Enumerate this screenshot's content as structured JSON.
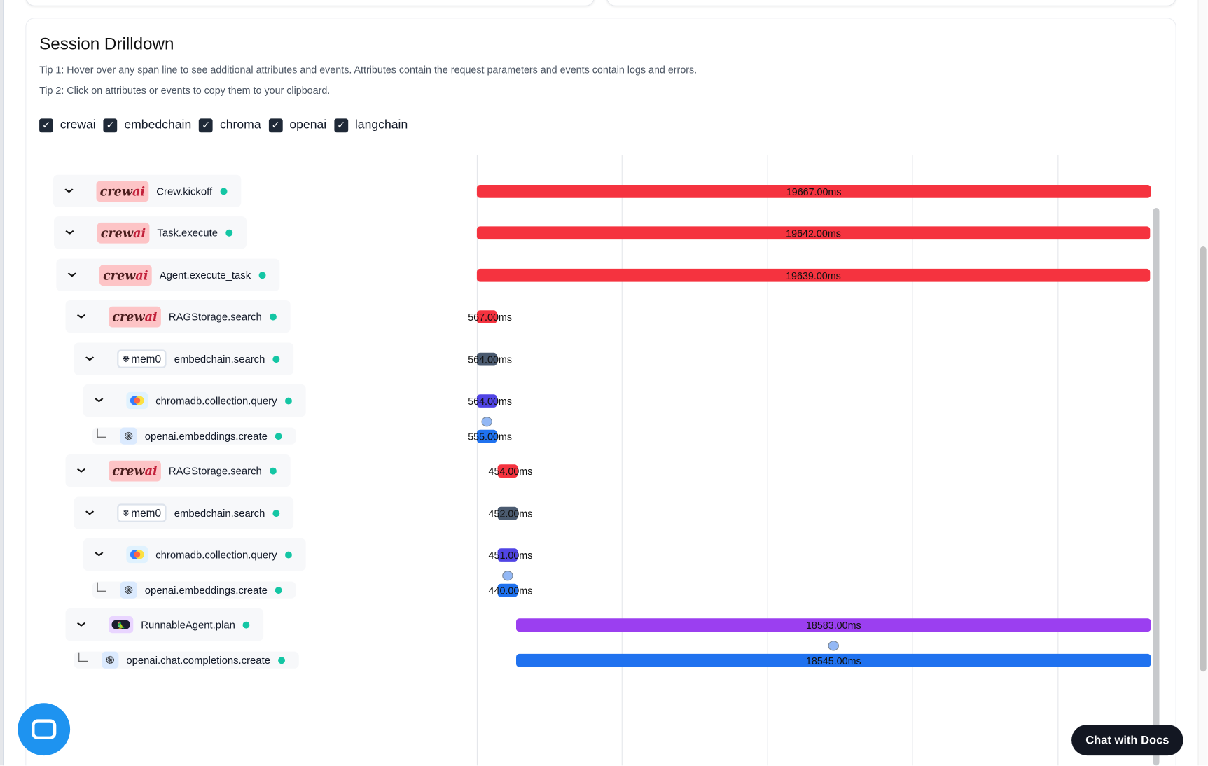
{
  "title": "Session Drilldown",
  "tips": [
    "Tip 1: Hover over any span line to see additional attributes and events. Attributes contain the request parameters and events contain logs and errors.",
    "Tip 2: Click on attributes or events to copy them to your clipboard."
  ],
  "filters": [
    {
      "label": "crewai",
      "checked": true
    },
    {
      "label": "embedchain",
      "checked": true
    },
    {
      "label": "chroma",
      "checked": true
    },
    {
      "label": "openai",
      "checked": true
    },
    {
      "label": "langchain",
      "checked": true
    }
  ],
  "colors": {
    "crewai": "#f5333f",
    "embedchain": "#4b5b70",
    "chroma": "#5145e5",
    "openai": "#2072ef",
    "langchain": "#9b3ff0",
    "status_ok": "#14c6a4"
  },
  "spans": [
    {
      "name": "Crew.kickoff",
      "vendor": "crewai",
      "depth": 0,
      "leaf": false,
      "start_ms": 0,
      "duration_label": "19667.00ms",
      "duration_ms": 19667,
      "event": false
    },
    {
      "name": "Task.execute",
      "vendor": "crewai",
      "depth": 0,
      "leaf": false,
      "start_ms": 0,
      "duration_label": "19642.00ms",
      "duration_ms": 19642,
      "event": false
    },
    {
      "name": "Agent.execute_task",
      "vendor": "crewai",
      "depth": 1,
      "leaf": false,
      "start_ms": 0,
      "duration_label": "19639.00ms",
      "duration_ms": 19639,
      "event": false
    },
    {
      "name": "RAGStorage.search",
      "vendor": "crewai",
      "depth": 2,
      "leaf": false,
      "start_ms": 0,
      "duration_label": "567.00ms",
      "duration_ms": 567,
      "event": false
    },
    {
      "name": "embedchain.search",
      "vendor": "embedchain",
      "depth": 3,
      "leaf": false,
      "start_ms": 0,
      "duration_label": "564.00ms",
      "duration_ms": 564,
      "event": false
    },
    {
      "name": "chromadb.collection.query",
      "vendor": "chroma",
      "depth": 4,
      "leaf": false,
      "start_ms": 0,
      "duration_label": "564.00ms",
      "duration_ms": 564,
      "event": false
    },
    {
      "name": "openai.embeddings.create",
      "vendor": "openai",
      "depth": 5,
      "leaf": true,
      "start_ms": 0,
      "duration_label": "555.00ms",
      "duration_ms": 555,
      "event": true
    },
    {
      "name": "RAGStorage.search",
      "vendor": "crewai",
      "depth": 2,
      "leaf": false,
      "start_ms": 600,
      "duration_label": "454.00ms",
      "duration_ms": 454,
      "event": false
    },
    {
      "name": "embedchain.search",
      "vendor": "embedchain",
      "depth": 3,
      "leaf": false,
      "start_ms": 600,
      "duration_label": "452.00ms",
      "duration_ms": 452,
      "event": false
    },
    {
      "name": "chromadb.collection.query",
      "vendor": "chroma",
      "depth": 4,
      "leaf": false,
      "start_ms": 600,
      "duration_label": "451.00ms",
      "duration_ms": 451,
      "event": false
    },
    {
      "name": "openai.embeddings.create",
      "vendor": "openai",
      "depth": 5,
      "leaf": true,
      "start_ms": 600,
      "duration_label": "440.00ms",
      "duration_ms": 440,
      "event": true
    },
    {
      "name": "RunnableAgent.plan",
      "vendor": "langchain",
      "depth": 2,
      "leaf": false,
      "start_ms": 1150,
      "duration_label": "18583.00ms",
      "duration_ms": 18583,
      "event": false
    },
    {
      "name": "openai.chat.completions.create",
      "vendor": "openai",
      "depth": 3,
      "leaf": true,
      "start_ms": 1150,
      "duration_label": "18545.00ms",
      "duration_ms": 18545,
      "event": true
    }
  ],
  "logos": {
    "crewai": "crew",
    "crewai_accent": "ai",
    "embedchain": "mem0"
  },
  "chat_docs_label": "Chat with Docs"
}
